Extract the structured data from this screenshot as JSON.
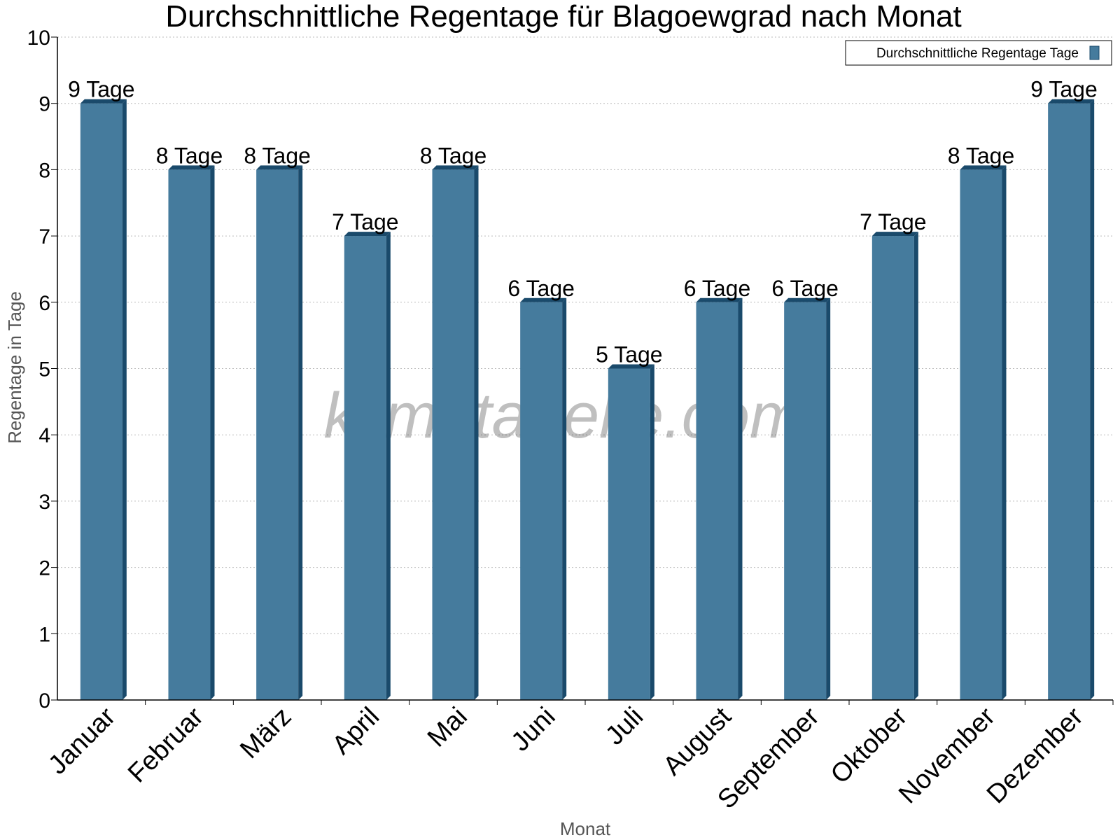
{
  "chart_data": {
    "type": "bar",
    "title": "Durchschnittliche Regentage für Blagoewgrad nach Monat",
    "xlabel": "Monat",
    "ylabel": "Regentage in Tage",
    "ylim": [
      0,
      10
    ],
    "yticks": [
      0,
      1,
      2,
      3,
      4,
      5,
      6,
      7,
      8,
      9,
      10
    ],
    "grid": true,
    "legend_position": "top-right",
    "categories": [
      "Januar",
      "Februar",
      "März",
      "April",
      "Mai",
      "Juni",
      "Juli",
      "August",
      "September",
      "Oktober",
      "November",
      "Dezember"
    ],
    "series": [
      {
        "name": "Durchschnittliche Regentage Tage",
        "color": "#457b9d",
        "values": [
          9,
          8,
          8,
          7,
          8,
          6,
          5,
          6,
          6,
          7,
          8,
          9
        ],
        "labels": [
          "9 Tage",
          "8 Tage",
          "8 Tage",
          "7 Tage",
          "8 Tage",
          "6 Tage",
          "5 Tage",
          "6 Tage",
          "6 Tage",
          "7 Tage",
          "8 Tage",
          "9 Tage"
        ]
      }
    ],
    "watermark": "klimatabelle.com"
  }
}
